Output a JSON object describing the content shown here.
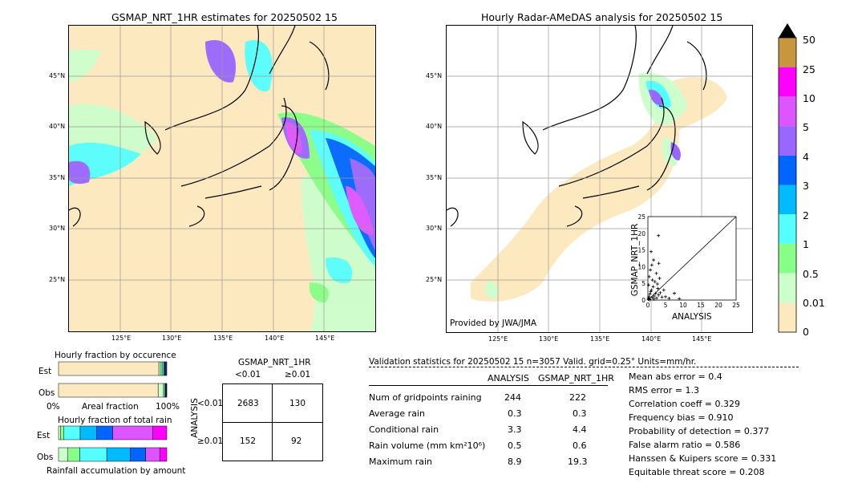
{
  "left_map": {
    "title": "GSMAP_NRT_1HR estimates for 20250502 15",
    "lat_labels": [
      "45°N",
      "40°N",
      "35°N",
      "30°N",
      "25°N"
    ],
    "lon_labels": [
      "125°E",
      "130°E",
      "135°E",
      "140°E",
      "145°E"
    ]
  },
  "right_map": {
    "title": "Hourly Radar-AMeDAS analysis for 20250502 15",
    "lat_labels": [
      "45°N",
      "40°N",
      "35°N",
      "30°N",
      "25°N"
    ],
    "lon_labels": [
      "125°E",
      "130°E",
      "135°E",
      "140°E",
      "145°E"
    ],
    "credit": "Provided by JWA/JMA"
  },
  "colorbar": {
    "labels": [
      "50",
      "25",
      "10",
      "5",
      "4",
      "3",
      "2",
      "1",
      "0.5",
      "0.01",
      "0"
    ],
    "colors": [
      "#c8963c",
      "#ff00ff",
      "#dd55ff",
      "#9966ff",
      "#0066ff",
      "#00bbff",
      "#55ffff",
      "#88ff88",
      "#ccffcc",
      "#fde9bf"
    ]
  },
  "chart_data": [
    {
      "type": "scatter",
      "xlabel": "ANALYSIS",
      "ylabel": "GSMAP_NRT_1HR",
      "xlim": [
        0,
        25
      ],
      "ylim": [
        0,
        25
      ],
      "ticks": [
        "0",
        "5",
        "10",
        "15",
        "20",
        "25"
      ],
      "points": [
        [
          0.1,
          0.2
        ],
        [
          0.2,
          0.5
        ],
        [
          0.3,
          1.0
        ],
        [
          0.5,
          0.3
        ],
        [
          0.6,
          1.8
        ],
        [
          0.8,
          2.5
        ],
        [
          1.0,
          3.0
        ],
        [
          1.2,
          0.8
        ],
        [
          1.5,
          4.0
        ],
        [
          1.8,
          1.2
        ],
        [
          2.0,
          5.5
        ],
        [
          2.2,
          2.0
        ],
        [
          2.5,
          0.6
        ],
        [
          2.8,
          3.5
        ],
        [
          3.0,
          1.5
        ],
        [
          3.3,
          6.5
        ],
        [
          3.5,
          2.2
        ],
        [
          4.0,
          0.9
        ],
        [
          0.4,
          7.0
        ],
        [
          0.7,
          9.0
        ],
        [
          1.1,
          10.5
        ],
        [
          1.6,
          12.0
        ],
        [
          2.4,
          8.0
        ],
        [
          3.1,
          11.0
        ],
        [
          0.9,
          14.5
        ],
        [
          3.0,
          19.3
        ],
        [
          5.0,
          1.0
        ],
        [
          6.0,
          0.5
        ],
        [
          7.5,
          2.0
        ],
        [
          8.9,
          0.4
        ],
        [
          4.5,
          3.0
        ],
        [
          0.2,
          4.5
        ],
        [
          1.3,
          6.0
        ],
        [
          2.7,
          4.8
        ],
        [
          0.5,
          0.1
        ],
        [
          1.7,
          0.3
        ]
      ]
    },
    {
      "type": "bar",
      "title": "Hourly fraction by occurence",
      "categories": [
        "Est",
        "Obs"
      ],
      "xlabel": "Areal fraction",
      "x_ticks": [
        "0%",
        "100%"
      ],
      "series": [
        {
          "values": [
            0.927,
            0.92
          ]
        },
        {
          "values": [
            0.02,
            0.05
          ]
        },
        {
          "values": [
            0.015,
            0.01
          ]
        },
        {
          "values": [
            0.012,
            0.008
          ]
        },
        {
          "values": [
            0.008,
            0.005
          ]
        },
        {
          "values": [
            0.008,
            0.004
          ]
        },
        {
          "values": [
            0.005,
            0.002
          ]
        },
        {
          "values": [
            0.005,
            0.001
          ]
        }
      ]
    },
    {
      "type": "bar",
      "title": "Hourly fraction of total rain",
      "categories": [
        "Est",
        "Obs"
      ],
      "xlabel": "Rainfall accumulation by amount",
      "series": [
        {
          "values": [
            0.02,
            0.08
          ]
        },
        {
          "values": [
            0.03,
            0.1
          ]
        },
        {
          "values": [
            0.15,
            0.23
          ]
        },
        {
          "values": [
            0.15,
            0.2
          ]
        },
        {
          "values": [
            0.15,
            0.13
          ]
        },
        {
          "values": [
            0.37,
            0.12
          ]
        },
        {
          "values": [
            0.13,
            0.06
          ]
        }
      ]
    }
  ],
  "contingency": {
    "title": "GSMAP_NRT_1HR",
    "col_headers": [
      "<0.01",
      "≥0.01"
    ],
    "row_label": "ANALYSIS",
    "row_headers": [
      "<0.01",
      "≥0.01"
    ],
    "cells": [
      [
        "2683",
        "130"
      ],
      [
        "152",
        "92"
      ]
    ]
  },
  "validation": {
    "title": "Validation statistics for 20250502 15  n=3057 Valid. grid=0.25° Units=mm/hr.",
    "col_headers": [
      "ANALYSIS",
      "GSMAP_NRT_1HR"
    ],
    "rows": [
      {
        "label": "Num of gridpoints raining",
        "a": "244",
        "g": "222"
      },
      {
        "label": "Average rain",
        "a": "0.3",
        "g": "0.3"
      },
      {
        "label": "Conditional rain",
        "a": "3.3",
        "g": "4.4"
      },
      {
        "label": "Rain volume (mm km²10⁶)",
        "a": "0.5",
        "g": "0.6"
      },
      {
        "label": "Maximum rain",
        "a": "8.9",
        "g": "19.3"
      }
    ],
    "scores": [
      "Mean abs error =    0.4",
      "RMS error =    1.3",
      "Correlation coeff =  0.329",
      "Frequency bias =  0.910",
      "Probability of detection =  0.377",
      "False alarm ratio =  0.586",
      "Hanssen & Kuipers score =  0.331",
      "Equitable threat score =  0.208"
    ]
  }
}
